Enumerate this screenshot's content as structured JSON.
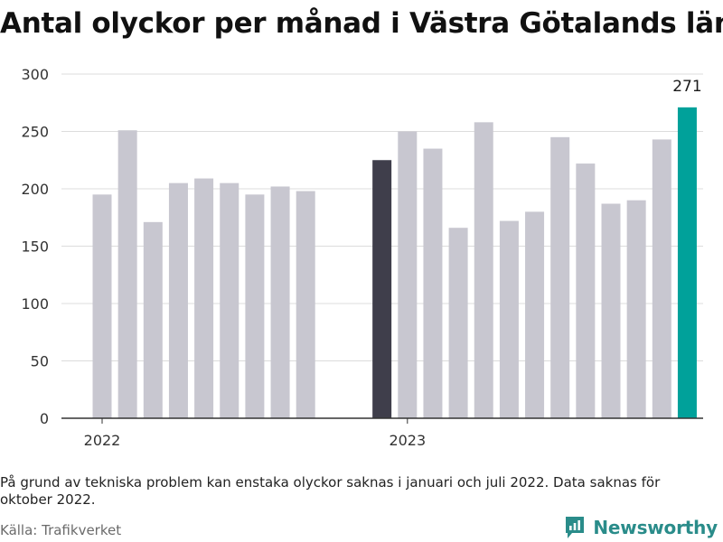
{
  "title": "Antal olyckor per månad i Västra Götalands län",
  "note": "På grund av tekniska problem kan enstaka olyckor saknas i januari och juli 2022. Data saknas för oktober 2022.",
  "source": "Källa: Trafikverket",
  "brand": {
    "name": "Newsworthy",
    "icon": "newsworthy-chart-icon",
    "color": "#2a8c8a"
  },
  "chart_data": {
    "type": "bar",
    "categories": [
      "2022-01",
      "2022-02",
      "2022-03",
      "2022-04",
      "2022-05",
      "2022-06",
      "2022-07",
      "2022-08",
      "2022-09",
      "2022-10",
      "2022-11",
      "2022-12",
      "2023-01",
      "2023-02",
      "2023-03",
      "2023-04",
      "2023-05",
      "2023-06",
      "2023-07",
      "2023-08",
      "2023-09",
      "2023-10",
      "2023-11",
      "2023-12"
    ],
    "values": [
      195,
      251,
      171,
      205,
      209,
      205,
      195,
      202,
      198,
      null,
      null,
      225,
      250,
      235,
      166,
      258,
      172,
      180,
      245,
      222,
      187,
      190,
      243,
      271
    ],
    "colors": {
      "default": "#c8c7d0",
      "2022-12": "#3f3e4b",
      "2023-12": "#00a19a"
    },
    "ylim": [
      0,
      300
    ],
    "yticks": [
      0,
      50,
      100,
      150,
      200,
      250,
      300
    ],
    "xtick_labels": [
      {
        "label": "2022",
        "category": "2022-01"
      },
      {
        "label": "2023",
        "category": "2023-01"
      }
    ],
    "data_labels": [
      {
        "category": "2023-12",
        "text": "271"
      }
    ],
    "grid": true,
    "xlabel": "",
    "ylabel": ""
  }
}
